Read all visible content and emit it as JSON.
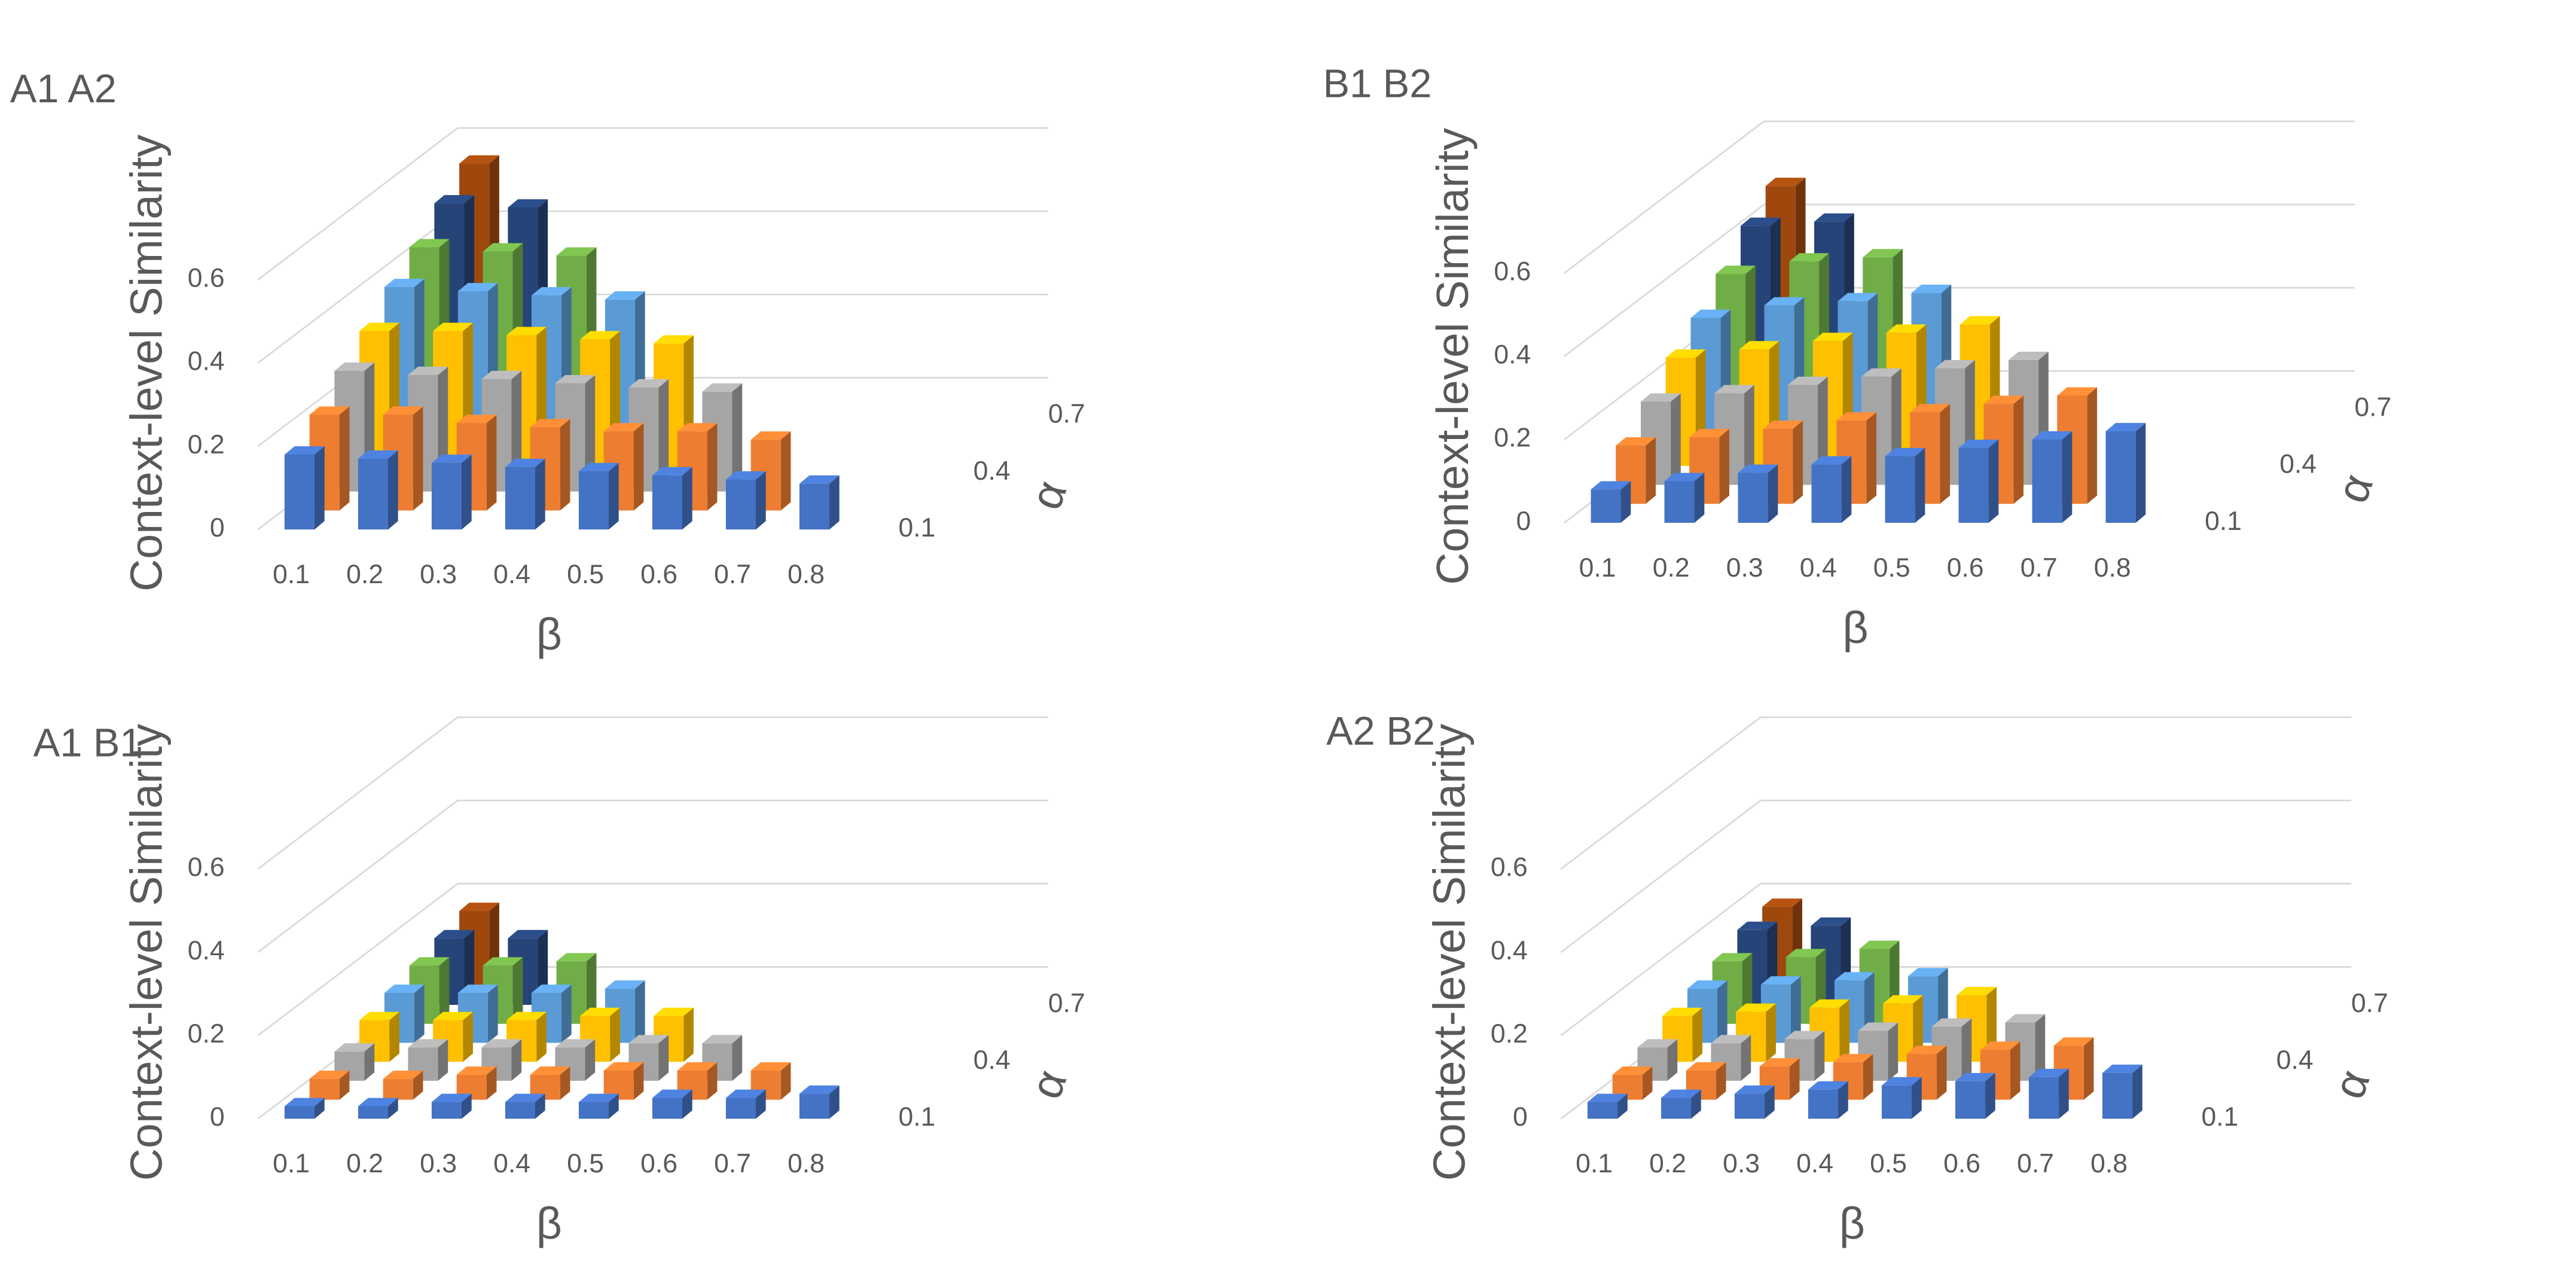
{
  "chart_data": [
    {
      "type": "bar3d",
      "title": "A1 A2",
      "ylabel": "Context-level Similarity",
      "xlabel": "β",
      "zlabel": "α",
      "categories": [
        "0.1",
        "0.2",
        "0.3",
        "0.4",
        "0.5",
        "0.6",
        "0.7",
        "0.8"
      ],
      "depth_categories": [
        "0.1",
        null,
        null,
        "0.4",
        null,
        null,
        "0.7",
        null
      ],
      "ylim": [
        0,
        0.6
      ],
      "yticks": [
        0,
        0.2,
        0.4,
        0.6
      ],
      "grid": true,
      "series": [
        {
          "color": "#4472c4",
          "values": [
            0.18,
            0.17,
            0.16,
            0.15,
            0.14,
            0.13,
            0.12,
            0.11
          ]
        },
        {
          "color": "#ed7d31",
          "values": [
            0.23,
            0.23,
            0.21,
            0.2,
            0.19,
            0.19,
            0.17,
            null
          ]
        },
        {
          "color": "#a5a5a5",
          "values": [
            0.29,
            0.28,
            0.27,
            0.26,
            0.25,
            0.24,
            null,
            null
          ]
        },
        {
          "color": "#ffc000",
          "values": [
            0.34,
            0.34,
            0.33,
            0.32,
            0.31,
            null,
            null,
            null
          ]
        },
        {
          "color": "#5b9bd5",
          "values": [
            0.4,
            0.39,
            0.38,
            0.37,
            null,
            null,
            null,
            null
          ]
        },
        {
          "color": "#70ad47",
          "values": [
            0.45,
            0.44,
            0.43,
            null,
            null,
            null,
            null,
            null
          ]
        },
        {
          "color": "#264478",
          "values": [
            0.51,
            0.5,
            null,
            null,
            null,
            null,
            null,
            null
          ]
        },
        {
          "color": "#9e480e",
          "values": [
            0.56,
            null,
            null,
            null,
            null,
            null,
            null,
            null
          ]
        }
      ]
    },
    {
      "type": "bar3d",
      "title": "B1 B2",
      "ylabel": "Context-level Similarity",
      "xlabel": "β",
      "zlabel": "α",
      "categories": [
        "0.1",
        "0.2",
        "0.3",
        "0.4",
        "0.5",
        "0.6",
        "0.7",
        "0.8"
      ],
      "depth_categories": [
        "0.1",
        null,
        null,
        "0.4",
        null,
        null,
        "0.7",
        null
      ],
      "ylim": [
        0,
        0.6
      ],
      "yticks": [
        0,
        0.2,
        0.4,
        0.6
      ],
      "grid": true,
      "series": [
        {
          "color": "#4472c4",
          "values": [
            0.08,
            0.1,
            0.12,
            0.14,
            0.16,
            0.18,
            0.2,
            0.22
          ]
        },
        {
          "color": "#ed7d31",
          "values": [
            0.14,
            0.16,
            0.18,
            0.2,
            0.22,
            0.24,
            0.26,
            null
          ]
        },
        {
          "color": "#a5a5a5",
          "values": [
            0.2,
            0.22,
            0.24,
            0.26,
            0.28,
            0.3,
            null,
            null
          ]
        },
        {
          "color": "#ffc000",
          "values": [
            0.26,
            0.28,
            0.3,
            0.32,
            0.34,
            null,
            null,
            null
          ]
        },
        {
          "color": "#5b9bd5",
          "values": [
            0.31,
            0.34,
            0.35,
            0.37,
            null,
            null,
            null,
            null
          ]
        },
        {
          "color": "#70ad47",
          "values": [
            0.37,
            0.4,
            0.41,
            null,
            null,
            null,
            null,
            null
          ]
        },
        {
          "color": "#264478",
          "values": [
            0.44,
            0.45,
            null,
            null,
            null,
            null,
            null,
            null
          ]
        },
        {
          "color": "#9e480e",
          "values": [
            0.49,
            null,
            null,
            null,
            null,
            null,
            null,
            null
          ]
        }
      ]
    },
    {
      "type": "bar3d",
      "title": "A1 B1",
      "ylabel": "Context-level Similarity",
      "xlabel": "β",
      "zlabel": "α",
      "categories": [
        "0.1",
        "0.2",
        "0.3",
        "0.4",
        "0.5",
        "0.6",
        "0.7",
        "0.8"
      ],
      "depth_categories": [
        "0.1",
        null,
        null,
        "0.4",
        null,
        null,
        "0.7",
        null
      ],
      "ylim": [
        0,
        0.6
      ],
      "yticks": [
        0,
        0.2,
        0.4,
        0.6
      ],
      "grid": true,
      "series": [
        {
          "color": "#4472c4",
          "values": [
            0.03,
            0.03,
            0.04,
            0.04,
            0.04,
            0.05,
            0.05,
            0.06
          ]
        },
        {
          "color": "#ed7d31",
          "values": [
            0.05,
            0.05,
            0.06,
            0.06,
            0.07,
            0.07,
            0.07,
            null
          ]
        },
        {
          "color": "#a5a5a5",
          "values": [
            0.07,
            0.08,
            0.08,
            0.08,
            0.09,
            0.09,
            null,
            null
          ]
        },
        {
          "color": "#ffc000",
          "values": [
            0.1,
            0.1,
            0.1,
            0.11,
            0.11,
            null,
            null,
            null
          ]
        },
        {
          "color": "#5b9bd5",
          "values": [
            0.12,
            0.12,
            0.12,
            0.13,
            null,
            null,
            null,
            null
          ]
        },
        {
          "color": "#70ad47",
          "values": [
            0.14,
            0.14,
            0.15,
            null,
            null,
            null,
            null,
            null
          ]
        },
        {
          "color": "#264478",
          "values": [
            0.16,
            0.16,
            null,
            null,
            null,
            null,
            null,
            null
          ]
        },
        {
          "color": "#9e480e",
          "values": [
            0.18,
            null,
            null,
            null,
            null,
            null,
            null,
            null
          ]
        }
      ]
    },
    {
      "type": "bar3d",
      "title": "A2 B2",
      "ylabel": "Context-level Similarity",
      "xlabel": "β",
      "zlabel": "α",
      "categories": [
        "0.1",
        "0.2",
        "0.3",
        "0.4",
        "0.5",
        "0.6",
        "0.7",
        "0.8"
      ],
      "depth_categories": [
        "0.1",
        null,
        null,
        "0.4",
        null,
        null,
        "0.7",
        null
      ],
      "ylim": [
        0,
        0.6
      ],
      "yticks": [
        0,
        0.2,
        0.4,
        0.6
      ],
      "grid": true,
      "series": [
        {
          "color": "#4472c4",
          "values": [
            0.04,
            0.05,
            0.06,
            0.07,
            0.08,
            0.09,
            0.1,
            0.11
          ]
        },
        {
          "color": "#ed7d31",
          "values": [
            0.06,
            0.07,
            0.08,
            0.09,
            0.11,
            0.12,
            0.13,
            null
          ]
        },
        {
          "color": "#a5a5a5",
          "values": [
            0.08,
            0.09,
            0.1,
            0.12,
            0.13,
            0.14,
            null,
            null
          ]
        },
        {
          "color": "#ffc000",
          "values": [
            0.11,
            0.12,
            0.13,
            0.14,
            0.16,
            null,
            null,
            null
          ]
        },
        {
          "color": "#5b9bd5",
          "values": [
            0.13,
            0.14,
            0.15,
            0.16,
            null,
            null,
            null,
            null
          ]
        },
        {
          "color": "#70ad47",
          "values": [
            0.15,
            0.16,
            0.18,
            null,
            null,
            null,
            null,
            null
          ]
        },
        {
          "color": "#264478",
          "values": [
            0.18,
            0.19,
            null,
            null,
            null,
            null,
            null,
            null
          ]
        },
        {
          "color": "#9e480e",
          "values": [
            0.19,
            null,
            null,
            null,
            null,
            null,
            null,
            null
          ]
        }
      ]
    }
  ]
}
